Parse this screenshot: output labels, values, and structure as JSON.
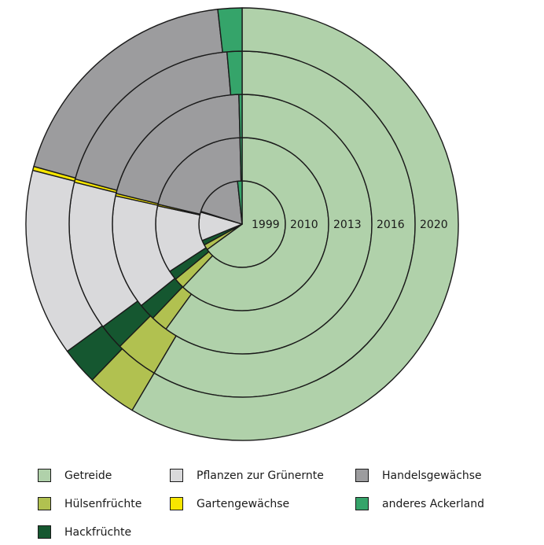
{
  "chart_data": {
    "type": "pie",
    "subtype": "nested-donut",
    "title": "",
    "rings": [
      "1999",
      "2010",
      "2013",
      "2016",
      "2020"
    ],
    "categories": [
      "Getreide",
      "Hülsenfrüchte",
      "Hackfrüchte",
      "Pflanzen zur Grünernte",
      "Gartengewächse",
      "Handelsgewächse",
      "anderes Ackerland"
    ],
    "colors": [
      "#b0d1aa",
      "#b1c150",
      "#155730",
      "#d9d9db",
      "#f7e600",
      "#9c9c9e",
      "#35a46a"
    ],
    "unit": "percent",
    "series": [
      {
        "name": "1999",
        "values": [
          65.0,
          2.0,
          1.8,
          10.7,
          0.3,
          18.5,
          1.7
        ]
      },
      {
        "name": "2010",
        "values": [
          62.0,
          2.0,
          1.8,
          12.6,
          0.3,
          20.9,
          0.4
        ]
      },
      {
        "name": "2013",
        "values": [
          60.0,
          2.1,
          2.1,
          14.3,
          0.3,
          20.8,
          0.4
        ]
      },
      {
        "name": "2016",
        "values": [
          58.5,
          4.0,
          2.4,
          14.0,
          0.3,
          19.4,
          1.4
        ]
      },
      {
        "name": "2020",
        "values": [
          58.5,
          3.7,
          2.8,
          14.0,
          0.3,
          18.9,
          1.8
        ]
      }
    ],
    "legend": {
      "position": "bottom",
      "items": [
        {
          "label": "Getreide",
          "color": "#b0d1aa"
        },
        {
          "label": "Pflanzen zur Grünernte",
          "color": "#d9d9db"
        },
        {
          "label": "Handelsgewächse",
          "color": "#9c9c9e"
        },
        {
          "label": "Hülsenfrüchte",
          "color": "#b1c150"
        },
        {
          "label": "Gartengewächse",
          "color": "#f7e600"
        },
        {
          "label": "anderes Ackerland",
          "color": "#35a46a"
        },
        {
          "label": "Hackfrüchte",
          "color": "#155730"
        }
      ]
    }
  }
}
